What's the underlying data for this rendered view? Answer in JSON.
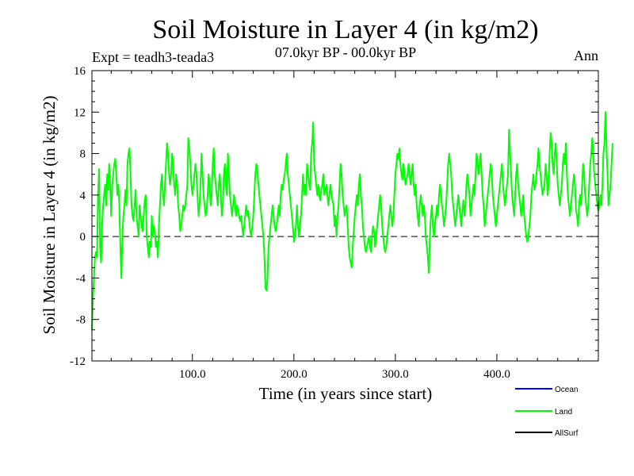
{
  "chart_data": {
    "type": "line",
    "title": "Soil Moisture in Layer 4 (in kg/m2)",
    "subtitle": "07.0kyr BP - 00.0kyr BP",
    "expt_label": "Expt = teadh3-teada3",
    "season_label": "Ann",
    "xlabel": "Time (in years since start)",
    "ylabel": "Soil Moisture in Layer 4 (in kg/m2)",
    "xlim": [
      1,
      500
    ],
    "ylim": [
      -12,
      16
    ],
    "x_ticks": [
      100,
      200,
      300,
      400
    ],
    "x_tick_labels": [
      "100.0",
      "200.0",
      "300.0",
      "400.0"
    ],
    "y_ticks": [
      -12,
      -8,
      -4,
      0,
      4,
      8,
      12,
      16
    ],
    "y_tick_labels": [
      "-12",
      "-8",
      "-4",
      "0",
      "4",
      "8",
      "12",
      "16"
    ],
    "zero_line": true,
    "legend": [
      {
        "name": "Ocean",
        "color": "#0000ff"
      },
      {
        "name": "Land",
        "color": "#00ff00"
      },
      {
        "name": "AllSurf",
        "color": "#000000"
      }
    ],
    "series": [
      {
        "name": "Land",
        "color": "#00ff00",
        "x_start": 1,
        "x_step": 1,
        "values": [
          -9,
          -6,
          -4,
          -2,
          -1.5,
          -2,
          4,
          6.5,
          -1,
          -2.5,
          1,
          3,
          4,
          5,
          3,
          6,
          4.5,
          7,
          5,
          2,
          5,
          6,
          7,
          7.5,
          6,
          4,
          5,
          3,
          -1,
          -4,
          0,
          2,
          3,
          4.5,
          3,
          7,
          8,
          8.5,
          6,
          3,
          2,
          1.5,
          3,
          4.5,
          2,
          1,
          0,
          3,
          2,
          1,
          0.5,
          2,
          3.5,
          4,
          0,
          -1,
          -2,
          -0.5,
          -1,
          2,
          0,
          1,
          0.5,
          -1,
          -0.5,
          -2,
          1,
          3,
          5,
          6,
          4,
          3,
          5,
          7,
          9,
          8,
          6,
          5,
          6,
          8,
          7,
          5,
          4,
          6,
          5,
          3,
          2,
          0.5,
          1,
          2,
          3,
          2.5,
          3,
          4,
          5,
          9.5,
          8.5,
          7,
          5,
          4,
          5,
          6,
          7,
          6,
          4,
          2,
          3,
          5,
          8,
          6,
          4,
          3,
          2,
          2.5,
          4,
          6,
          5,
          3,
          4,
          7,
          8.5,
          6,
          5,
          4,
          3,
          5,
          6,
          4,
          2,
          3,
          6,
          7,
          5,
          4,
          8,
          6,
          4,
          3,
          2,
          3,
          4,
          3,
          2,
          3,
          2.5,
          2,
          1.5,
          2,
          1,
          0,
          1,
          2,
          3,
          2,
          2.5,
          1.5,
          0.5,
          0,
          1,
          2,
          4,
          6,
          7,
          6.5,
          5,
          4,
          3,
          2,
          1,
          0,
          -2,
          -5,
          -5.2,
          -4,
          -1,
          0,
          1,
          2,
          3,
          2,
          1,
          0.5,
          1,
          2,
          3,
          2,
          4,
          5,
          4.5,
          5.5,
          6,
          7,
          8,
          6,
          5,
          4,
          3,
          2,
          1,
          -0.5,
          0,
          1,
          3,
          1,
          0,
          1,
          2,
          4,
          6,
          4,
          5,
          4,
          7,
          6,
          5,
          4.5,
          8,
          9,
          11,
          7,
          6,
          5,
          4,
          5,
          4,
          3.5,
          4.5,
          5,
          6,
          4,
          4.5,
          5,
          4,
          3,
          4,
          5,
          4,
          3.5,
          3,
          1,
          2,
          0,
          2,
          3,
          5,
          7,
          6,
          4,
          3,
          2,
          2.5,
          3,
          1,
          -1,
          -2,
          -2.5,
          -3,
          -1,
          0.5,
          2,
          3,
          4,
          3,
          5,
          6,
          4,
          3,
          1,
          0,
          -1,
          -1.5,
          -1,
          -0.5,
          0,
          -1,
          -1.5,
          0,
          1,
          0.5,
          -1,
          0,
          1,
          2,
          3,
          4,
          3,
          1,
          0,
          -1,
          -1.5,
          -1,
          0,
          1,
          2,
          3,
          2,
          1,
          2,
          4,
          6,
          7,
          8,
          7.5,
          8.5,
          7,
          6,
          5.5,
          7,
          6,
          5,
          5.5,
          6,
          7,
          6,
          5,
          6,
          7,
          5,
          4,
          5,
          3,
          2,
          1,
          3,
          4,
          3,
          2,
          3,
          2,
          0,
          -1,
          -2,
          -3.5,
          0,
          2,
          3,
          1,
          0,
          1,
          2,
          3,
          2,
          4,
          5,
          4,
          3,
          2,
          1,
          2,
          3,
          5,
          7,
          8,
          7,
          6,
          4,
          3,
          2,
          1,
          2,
          3,
          4,
          3,
          2,
          1,
          2.5,
          3.5,
          2,
          3,
          5,
          6,
          5,
          4,
          2,
          3,
          4,
          5,
          4,
          6,
          8,
          7,
          6,
          7,
          8,
          6,
          4,
          3,
          1,
          2,
          3,
          4,
          5,
          6,
          7,
          6,
          4,
          3,
          2,
          1,
          2,
          3,
          4,
          5,
          6,
          7,
          5,
          4,
          3,
          4,
          5,
          6,
          10.3,
          8,
          6,
          4,
          3,
          2,
          4,
          6,
          7,
          5,
          4,
          3,
          2,
          3,
          4,
          2,
          1,
          0,
          -0.5,
          0,
          1,
          2,
          4,
          5,
          6,
          4.5,
          5,
          6,
          7,
          8.5,
          7,
          6,
          5,
          4,
          4.5,
          5,
          7,
          6,
          4,
          5,
          8,
          10,
          9,
          7,
          6,
          8,
          9,
          7,
          5,
          4,
          3,
          4,
          5,
          7,
          8,
          7,
          9,
          6,
          4,
          3,
          2,
          3,
          4,
          5,
          6,
          5,
          2.5,
          2,
          1,
          3,
          4,
          3,
          5,
          7,
          6,
          4,
          3,
          2,
          3,
          5,
          7,
          8,
          9.5,
          8,
          6,
          5,
          4,
          3,
          2.5,
          3,
          4,
          3,
          5,
          8,
          9,
          12,
          9,
          6,
          3,
          4,
          5,
          7,
          9
        ]
      }
    ]
  }
}
